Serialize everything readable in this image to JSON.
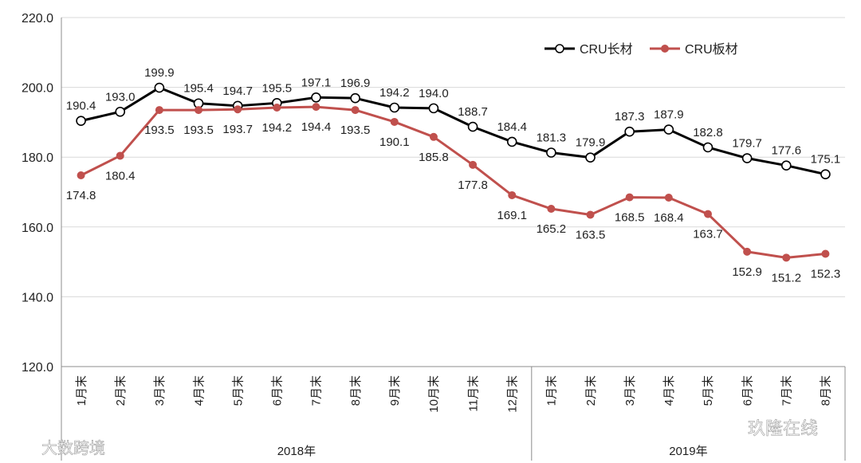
{
  "chart_data": {
    "type": "line",
    "title": "",
    "xlabel": "",
    "ylabel": "",
    "ylim": [
      120.0,
      220.0
    ],
    "yticks": [
      "120.0",
      "140.0",
      "160.0",
      "180.0",
      "200.0",
      "220.0"
    ],
    "grid": true,
    "legend_position": "top-right",
    "categories": [
      "1月末",
      "2月末",
      "3月末",
      "4月末",
      "5月末",
      "6月末",
      "7月末",
      "8月末",
      "9月末",
      "10月末",
      "11月末",
      "12月末",
      "1月末",
      "2月末",
      "3月末",
      "4月末",
      "5月末",
      "6月末",
      "7月末",
      "8月末"
    ],
    "year_groups": [
      {
        "label": "2018年",
        "count": 12
      },
      {
        "label": "2019年",
        "count": 8
      }
    ],
    "series": [
      {
        "name": "CRU长材",
        "color": "#000000",
        "marker": "open-circle",
        "values": [
          190.4,
          193.0,
          199.9,
          195.4,
          194.7,
          195.5,
          197.1,
          196.9,
          194.2,
          194.0,
          188.7,
          184.4,
          181.3,
          179.9,
          187.3,
          187.9,
          182.8,
          179.7,
          177.6,
          175.1
        ],
        "labels": [
          "190.4",
          "193.0",
          "199.9",
          "195.4",
          "194.7",
          "195.5",
          "197.1",
          "196.9",
          "194.2",
          "194.0",
          "188.7",
          "184.4",
          "181.3",
          "179.9",
          "187.3",
          "187.9",
          "182.8",
          "179.7",
          "177.6",
          "175.1"
        ]
      },
      {
        "name": "CRU板材",
        "color": "#c0504d",
        "marker": "filled-circle",
        "values": [
          174.8,
          180.4,
          193.5,
          193.5,
          193.7,
          194.2,
          194.4,
          193.5,
          190.1,
          185.8,
          177.8,
          169.1,
          165.2,
          163.5,
          168.5,
          168.4,
          163.7,
          152.9,
          151.2,
          152.3
        ],
        "labels": [
          "174.8",
          "180.4",
          "193.5",
          "193.5",
          "193.7",
          "194.2",
          "194.4",
          "193.5",
          "190.1",
          "185.8",
          "177.8",
          "169.1",
          "165.2",
          "163.5",
          "168.5",
          "168.4",
          "163.7",
          "152.9",
          "151.2",
          "152.3"
        ]
      }
    ]
  },
  "watermarks": {
    "left": "大数跨境",
    "right": "玖隆在线"
  }
}
